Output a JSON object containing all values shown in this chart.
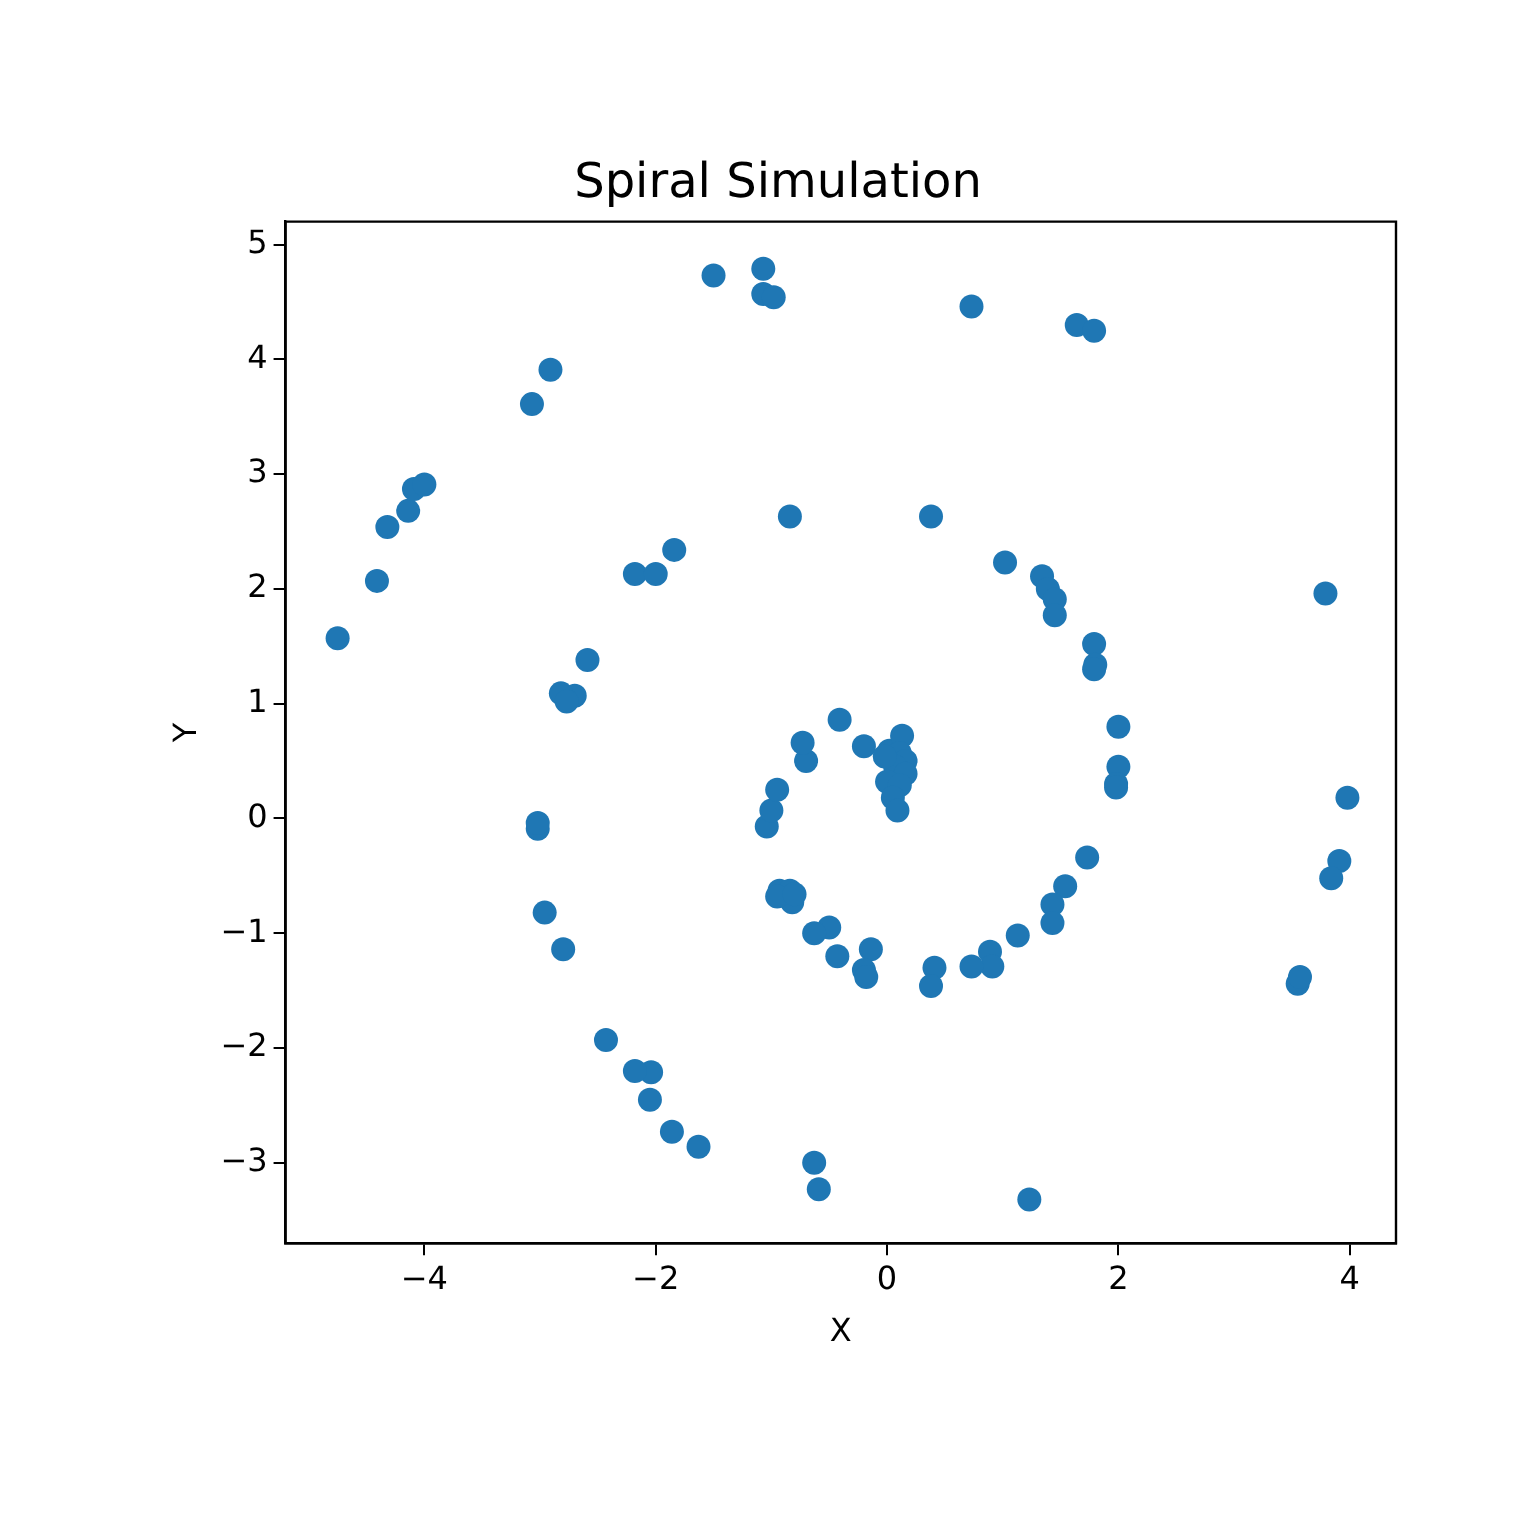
{
  "chart_data": {
    "type": "scatter",
    "title": "Spiral Simulation",
    "xlabel": "X",
    "ylabel": "Y",
    "xlim": [
      -5.2,
      4.4
    ],
    "ylim": [
      -3.7,
      5.2
    ],
    "xticks": [
      -4,
      -2,
      0,
      2,
      4
    ],
    "yticks": [
      -3,
      -2,
      -1,
      0,
      1,
      2,
      3,
      4,
      5
    ],
    "grid": false,
    "legend": false,
    "marker": "circle",
    "series": [
      {
        "color": "#1f77b4",
        "x": [
          -4.75,
          -4.41,
          -4.32,
          -4.14,
          -4.09,
          -4.0,
          -3.07,
          -2.91,
          -1.5,
          -1.07,
          -1.07,
          -0.98,
          0.73,
          1.64,
          1.79,
          3.79,
          3.98,
          3.91,
          3.84,
          3.55,
          3.57,
          1.23,
          -0.63,
          -0.59,
          -1.63,
          -1.86,
          -2.05,
          -2.04,
          -2.18,
          -2.43,
          -2.8,
          -2.96,
          -3.02,
          -3.02,
          -2.59,
          -2.7,
          -2.82,
          -2.77,
          -2.18,
          -2.0,
          -1.84,
          -0.84,
          0.38,
          1.02,
          1.34,
          1.39,
          1.45,
          1.45,
          1.79,
          1.8,
          1.79,
          2.0,
          2.0,
          1.98,
          1.98,
          1.73,
          1.54,
          1.43,
          1.43,
          1.13,
          0.89,
          0.91,
          0.73,
          0.41,
          0.38,
          -0.14,
          -0.2,
          -0.18,
          -0.43,
          -0.5,
          -0.63,
          -0.82,
          -0.93,
          -0.84,
          -0.95,
          -0.8,
          -1.04,
          -1.0,
          -0.95,
          -0.7,
          -0.73,
          -0.41,
          -0.2,
          0.02,
          0.13,
          0.11,
          0.16,
          0.07,
          0.16,
          0.0,
          0.11,
          0.05,
          0.09,
          -0.02
        ],
        "values": [
          1.57,
          2.07,
          2.54,
          2.68,
          2.87,
          2.91,
          3.61,
          3.91,
          4.73,
          4.79,
          4.57,
          4.54,
          4.46,
          4.3,
          4.25,
          1.96,
          0.18,
          -0.37,
          -0.52,
          -1.44,
          -1.38,
          -3.32,
          -3.0,
          -3.23,
          -2.86,
          -2.73,
          -2.45,
          -2.21,
          -2.2,
          -1.93,
          -1.14,
          -0.82,
          -0.09,
          -0.04,
          1.38,
          1.07,
          1.09,
          1.02,
          2.13,
          2.13,
          2.34,
          2.63,
          2.63,
          2.23,
          2.11,
          2.0,
          1.91,
          1.77,
          1.52,
          1.34,
          1.3,
          0.8,
          0.45,
          0.3,
          0.27,
          -0.34,
          -0.59,
          -0.75,
          -0.91,
          -1.02,
          -1.16,
          -1.29,
          -1.29,
          -1.3,
          -1.46,
          -1.14,
          -1.32,
          -1.38,
          -1.2,
          -0.95,
          -1.0,
          -0.73,
          -0.63,
          -0.63,
          -0.68,
          -0.66,
          -0.07,
          0.07,
          0.25,
          0.5,
          0.66,
          0.86,
          0.63,
          0.59,
          0.72,
          0.57,
          0.5,
          0.45,
          0.39,
          0.32,
          0.29,
          0.18,
          0.07,
          0.54
        ]
      }
    ]
  }
}
